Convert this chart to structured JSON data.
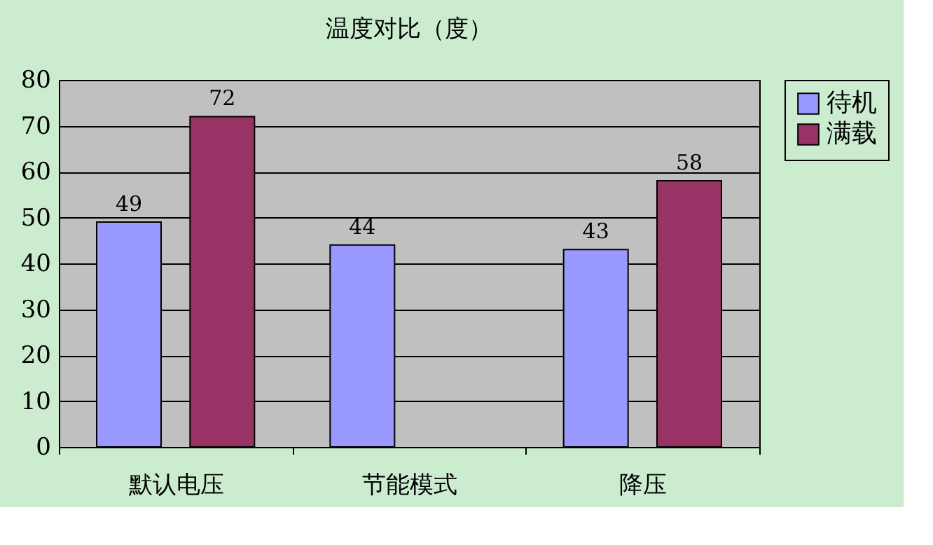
{
  "chart_data": {
    "type": "bar",
    "title": "温度对比（度）",
    "categories": [
      "默认电压",
      "节能模式",
      "降压"
    ],
    "series": [
      {
        "name": "待机",
        "color": "#9999ff",
        "values": [
          49,
          44,
          43
        ]
      },
      {
        "name": "满载",
        "color": "#993366",
        "values": [
          72,
          null,
          58
        ]
      }
    ],
    "ylim": [
      0,
      80
    ],
    "yticks": [
      0,
      10,
      20,
      30,
      40,
      50,
      60,
      70,
      80
    ],
    "grid": "y",
    "legend": "right",
    "data_labels": true
  }
}
